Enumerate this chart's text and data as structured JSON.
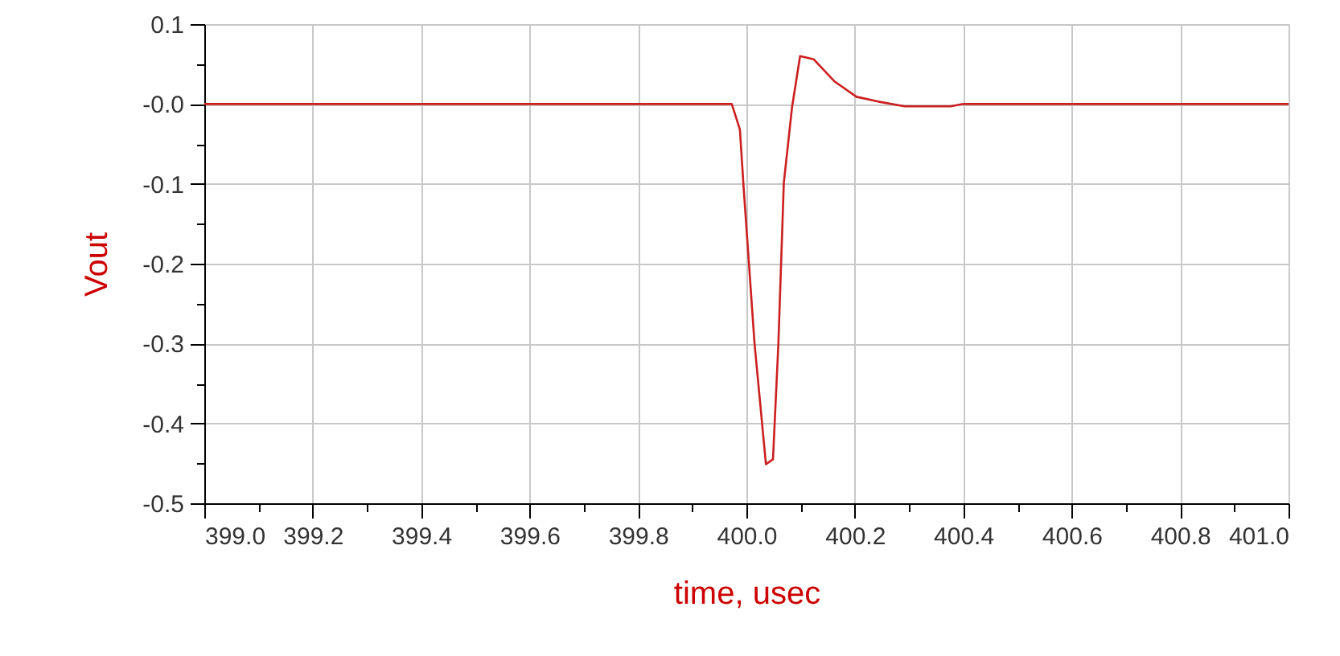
{
  "chart_data": {
    "type": "line",
    "xlabel": "time, usec",
    "ylabel": "Vout",
    "x": [
      399.0,
      399.973,
      399.988,
      399.995,
      400.015,
      400.036,
      400.049,
      400.059,
      400.069,
      400.084,
      400.099,
      400.124,
      400.163,
      400.203,
      400.243,
      400.292,
      400.377,
      400.4,
      401.0
    ],
    "series": [
      {
        "color": "#cc1f1f",
        "values": [
          0,
          0,
          -0.032,
          -0.106,
          -0.3,
          -0.451,
          -0.445,
          -0.3,
          -0.099,
          -0.005,
          0.06,
          0.056,
          0.028,
          0.009,
          0.003,
          -0.003,
          -0.003,
          0,
          0
        ]
      }
    ],
    "xlim": [
      399.0,
      401.0
    ],
    "xticks": [
      {
        "value": 399.0,
        "label": "399.0"
      },
      {
        "value": 399.1,
        "label": null
      },
      {
        "value": 399.2,
        "label": "399.2"
      },
      {
        "value": 399.3,
        "label": null
      },
      {
        "value": 399.4,
        "label": "399.4"
      },
      {
        "value": 399.5,
        "label": null
      },
      {
        "value": 399.6,
        "label": "399.6"
      },
      {
        "value": 399.7,
        "label": null
      },
      {
        "value": 399.8,
        "label": "399.8"
      },
      {
        "value": 399.9,
        "label": null
      },
      {
        "value": 400.0,
        "label": "400.0"
      },
      {
        "value": 400.1,
        "label": null
      },
      {
        "value": 400.2,
        "label": "400.2"
      },
      {
        "value": 400.3,
        "label": null
      },
      {
        "value": 400.4,
        "label": "400.4"
      },
      {
        "value": 400.5,
        "label": null
      },
      {
        "value": 400.6,
        "label": "400.6"
      },
      {
        "value": 400.7,
        "label": null
      },
      {
        "value": 400.8,
        "label": "400.8"
      },
      {
        "value": 400.9,
        "label": null
      },
      {
        "value": 401.0,
        "label": "401.0"
      }
    ],
    "ylim": [
      -0.5,
      0.1
    ],
    "yticks": [
      {
        "value": -0.5,
        "label": "-0.5"
      },
      {
        "value": -0.45,
        "label": null
      },
      {
        "value": -0.4,
        "label": "-0.4"
      },
      {
        "value": -0.35,
        "label": null
      },
      {
        "value": -0.3,
        "label": "-0.3"
      },
      {
        "value": -0.25,
        "label": null
      },
      {
        "value": -0.2,
        "label": "-0.2"
      },
      {
        "value": -0.15,
        "label": null
      },
      {
        "value": -0.1,
        "label": "-0.1"
      },
      {
        "value": -0.05,
        "label": null
      },
      {
        "value": 0,
        "label": "-0.0"
      },
      {
        "value": 0.05,
        "label": null
      },
      {
        "value": 0.1,
        "label": "0.1"
      }
    ],
    "grid": true,
    "marker": "none",
    "line_style": "solid"
  }
}
